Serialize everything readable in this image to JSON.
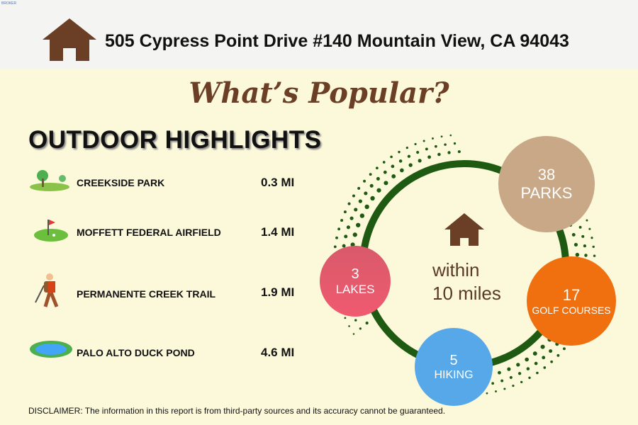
{
  "header": {
    "logo": "BROKER",
    "address": "505 Cypress Point Drive #140 Mountain View, CA 94043"
  },
  "title": "What’s Popular?",
  "section_title": "OUTDOOR HIGHLIGHTS",
  "highlights": [
    {
      "name": "CREEKSIDE PARK",
      "distance": "0.3 MI",
      "icon": "park-icon"
    },
    {
      "name": "MOFFETT FEDERAL AIRFIELD",
      "distance": "1.4 MI",
      "icon": "golf-icon"
    },
    {
      "name": "PERMANENTE CREEK TRAIL",
      "distance": "1.9 MI",
      "icon": "hiker-icon"
    },
    {
      "name": "PALO ALTO DUCK POND",
      "distance": "4.6 MI",
      "icon": "pond-icon"
    }
  ],
  "radius": {
    "line1": "within",
    "line2": "10 miles"
  },
  "counts": {
    "parks": {
      "n": "38",
      "label": "PARKS",
      "color": "#c8a886"
    },
    "golf": {
      "n": "17",
      "label": "GOLF COURSES",
      "color": "#f07010"
    },
    "hiking": {
      "n": "5",
      "label": "HIKING",
      "color": "#56a8e8"
    },
    "lakes": {
      "n": "3",
      "label": "LAKES",
      "color": "#e05a6e"
    }
  },
  "colors": {
    "brown": "#6a3f26",
    "green": "#1e5a12",
    "background": "#fcf8da"
  },
  "disclaimer": "DISCLAIMER: The information in this report is from third-party sources and its accuracy cannot be guaranteed."
}
